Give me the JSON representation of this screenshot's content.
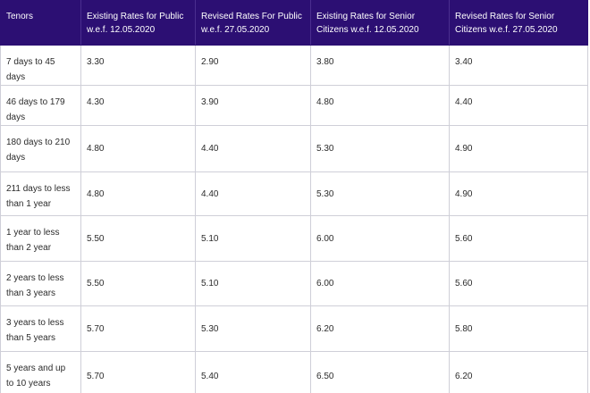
{
  "table": {
    "headers": [
      "Tenors",
      "Existing Rates for Public w.e.f. 12.05.2020",
      "Revised Rates For Public w.e.f. 27.05.2020",
      "Existing Rates for Senior Citizens w.e.f. 12.05.2020",
      "Revised Rates for Senior Citizens w.e.f. 27.05.2020"
    ],
    "rows": [
      [
        "7 days to 45 days",
        "3.30",
        "2.90",
        "3.80",
        "3.40"
      ],
      [
        "46 days to 179 days",
        "4.30",
        "3.90",
        "4.80",
        "4.40"
      ],
      [
        "180 days to 210 days",
        "4.80",
        "4.40",
        "5.30",
        "4.90"
      ],
      [
        "211 days to less than 1 year",
        "4.80",
        "4.40",
        "5.30",
        "4.90"
      ],
      [
        "1 year to less than 2 year",
        "5.50",
        "5.10",
        "6.00",
        "5.60"
      ],
      [
        "2 years to less than 3 years",
        "5.50",
        "5.10",
        "6.00",
        "5.60"
      ],
      [
        "3 years to less than 5 years",
        "5.70",
        "5.30",
        "6.20",
        "5.80"
      ],
      [
        "5 years and up to 10 years",
        "5.70",
        "5.40",
        "6.50",
        "6.20"
      ]
    ]
  },
  "colors": {
    "header_background": "#2c0f73",
    "header_text": "#ffffff",
    "border": "#cfcfd8",
    "body_text": "#2b2b2b"
  }
}
